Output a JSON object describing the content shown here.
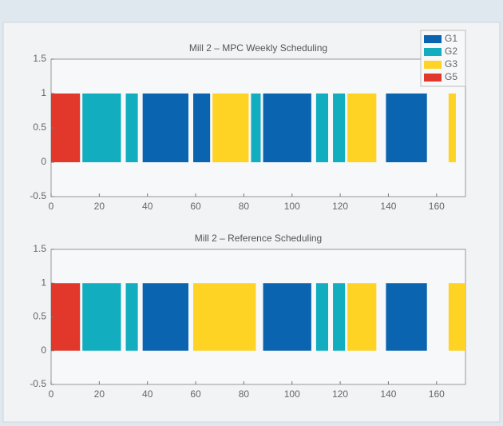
{
  "chart_data": [
    {
      "type": "bar",
      "title": "Mill 2 – MPC Weekly Scheduling",
      "legend": "upper right",
      "xlim": [
        0,
        172
      ],
      "xticks": [
        0,
        20,
        40,
        60,
        80,
        100,
        120,
        140,
        160
      ],
      "ylim": [
        -0.5,
        1.5
      ],
      "yticks": [
        -0.5,
        0,
        0.5,
        1,
        1.5
      ],
      "series": [
        {
          "name": "G1",
          "color": "#0b64b0",
          "starts": [
            38,
            59,
            88,
            139
          ],
          "ends": [
            57,
            66,
            108,
            156
          ],
          "values": [
            1,
            1,
            1,
            1
          ]
        },
        {
          "name": "G2",
          "color": "#12aec0",
          "starts": [
            13,
            31,
            83,
            110,
            117
          ],
          "ends": [
            29,
            36,
            87,
            115,
            122
          ],
          "values": [
            1,
            1,
            1,
            1,
            1
          ]
        },
        {
          "name": "G3",
          "color": "#fed324",
          "starts": [
            67,
            123,
            165
          ],
          "ends": [
            82,
            135,
            168
          ],
          "values": [
            1,
            1,
            1
          ]
        },
        {
          "name": "G5",
          "color": "#e1382b",
          "starts": [
            0
          ],
          "ends": [
            12
          ],
          "values": [
            1
          ]
        }
      ]
    },
    {
      "type": "bar",
      "title": "Mill 2 – Reference Scheduling",
      "xlim": [
        0,
        172
      ],
      "xticks": [
        0,
        20,
        40,
        60,
        80,
        100,
        120,
        140,
        160
      ],
      "ylim": [
        -0.5,
        1.5
      ],
      "yticks": [
        -0.5,
        0,
        0.5,
        1,
        1.5
      ],
      "series": [
        {
          "name": "G1",
          "color": "#0b64b0",
          "starts": [
            38,
            88,
            139
          ],
          "ends": [
            57,
            108,
            156
          ],
          "values": [
            1,
            1,
            1
          ]
        },
        {
          "name": "G2",
          "color": "#12aec0",
          "starts": [
            13,
            31,
            110,
            117
          ],
          "ends": [
            29,
            36,
            115,
            122
          ],
          "values": [
            1,
            1,
            1,
            1
          ]
        },
        {
          "name": "G3",
          "color": "#fed324",
          "starts": [
            59,
            123,
            165
          ],
          "ends": [
            85,
            135,
            172
          ],
          "values": [
            1,
            1,
            1
          ]
        },
        {
          "name": "G5",
          "color": "#e1382b",
          "starts": [
            0
          ],
          "ends": [
            12
          ],
          "values": [
            1
          ]
        }
      ]
    }
  ]
}
